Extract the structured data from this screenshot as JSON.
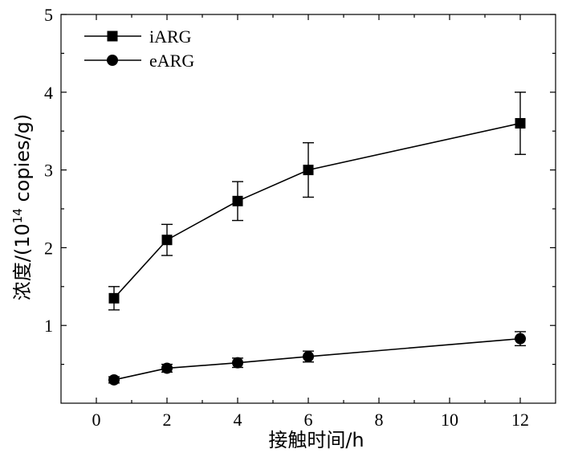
{
  "chart_data": {
    "type": "line",
    "x": [
      0.5,
      2,
      4,
      6,
      12
    ],
    "series": [
      {
        "name": "iARG",
        "marker": "square",
        "values": [
          1.35,
          2.1,
          2.6,
          3.0,
          3.6
        ],
        "errors": [
          0.15,
          0.2,
          0.25,
          0.35,
          0.4
        ]
      },
      {
        "name": "eARG",
        "marker": "circle",
        "values": [
          0.3,
          0.45,
          0.52,
          0.6,
          0.83
        ],
        "errors": [
          0.04,
          0.05,
          0.06,
          0.07,
          0.09
        ]
      }
    ],
    "xlabel": "接触时间/h",
    "ylabel_prefix": "浓度/(10",
    "ylabel_sup": "14",
    "ylabel_suffix": " copies/g)",
    "xlim": [
      -1,
      13
    ],
    "ylim": [
      0,
      5
    ],
    "xticks": [
      0,
      2,
      4,
      6,
      8,
      10,
      12
    ],
    "yticks": [
      1,
      2,
      3,
      4,
      5
    ],
    "legend_position": "top-left",
    "grid": false,
    "color": "#000000"
  }
}
